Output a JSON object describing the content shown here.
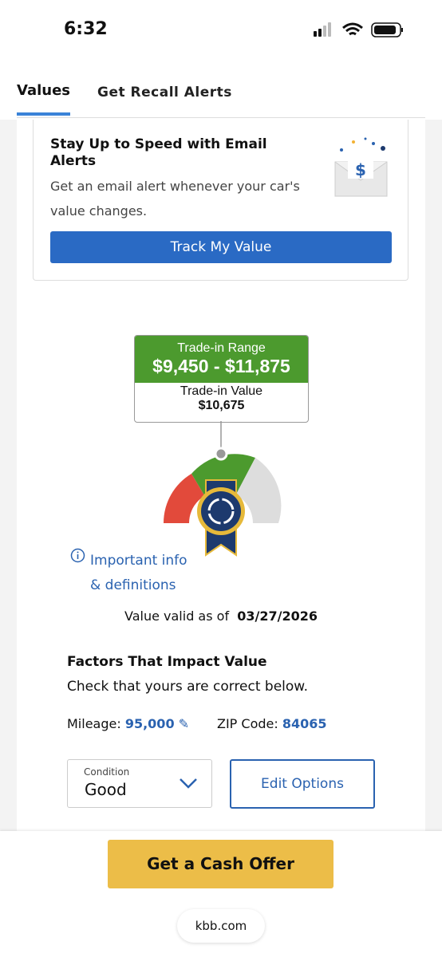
{
  "status_bar": {
    "time": "6:32"
  },
  "tabs": [
    "Values",
    "Get Recall Alerts"
  ],
  "email_alert": {
    "title": "Stay Up to Speed with Email Alerts",
    "description": "Get an email alert whenever your car's value changes.",
    "button": "Track My Value"
  },
  "value_card": {
    "range_label": "Trade-in Range",
    "range": "$9,450 - $11,875",
    "value_label": "Trade-in Value",
    "value": "$10,675"
  },
  "info_link": "Important info & definitions",
  "valid": {
    "label": "Value valid as of",
    "date": "03/27/2026"
  },
  "factors": {
    "title": "Factors That Impact Value",
    "subtitle": "Check that yours are correct below.",
    "mileage_label": "Mileage:",
    "mileage": "95,000",
    "zip_label": "ZIP Code:",
    "zip": "84065"
  },
  "condition": {
    "label": "Condition",
    "value": "Good"
  },
  "edit_button": "Edit Options",
  "cash_offer": "Get a Cash Offer",
  "url": "kbb.com"
}
